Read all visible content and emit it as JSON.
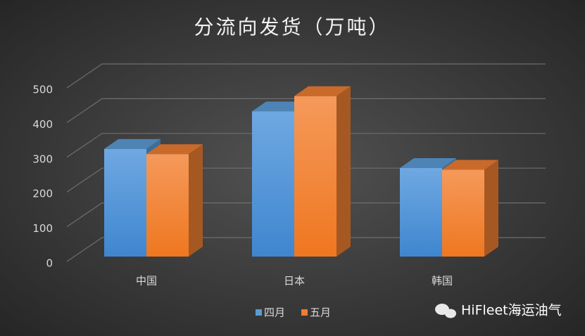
{
  "chart_data": {
    "type": "bar3d",
    "title": "分流向发货（万吨）",
    "categories": [
      "中国",
      "日本",
      "韩国"
    ],
    "series": [
      {
        "name": "四月",
        "color": "#5b9bd5",
        "values": [
          310,
          418,
          255
        ]
      },
      {
        "name": "五月",
        "color": "#ed7d31",
        "values": [
          295,
          462,
          250
        ]
      }
    ],
    "ylim": [
      0,
      500
    ],
    "yticks": [
      0,
      100,
      200,
      300,
      400,
      500
    ],
    "grid": true,
    "legend": "bottom"
  },
  "watermark": "HiFleet海运油气"
}
